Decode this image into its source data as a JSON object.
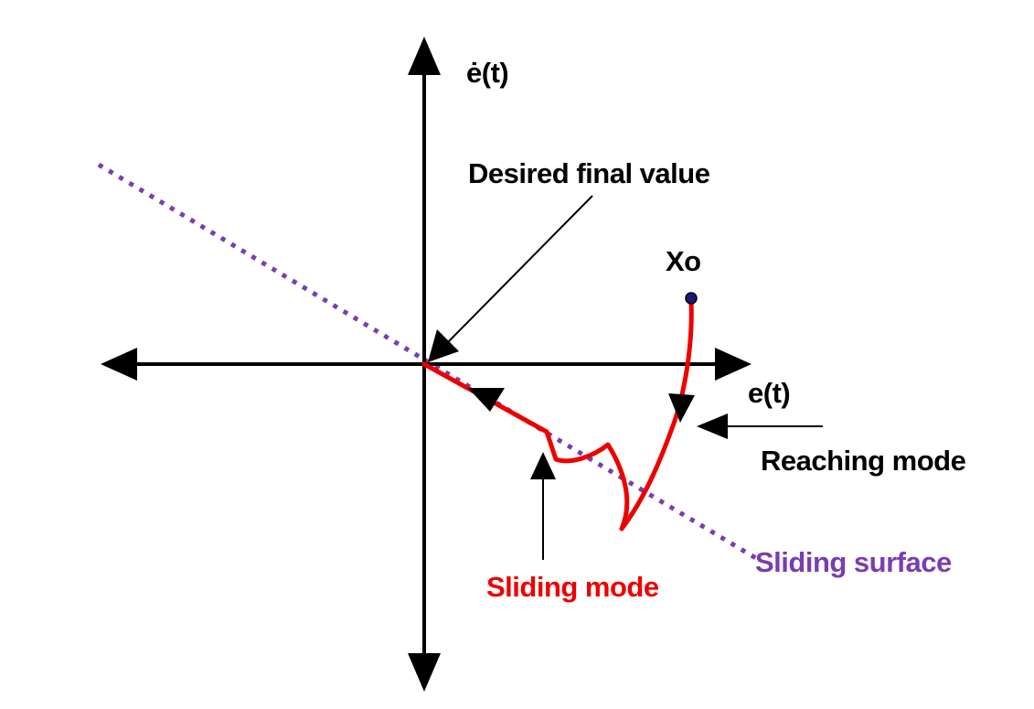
{
  "figure": {
    "ydot_axis_label": "ė(t)",
    "x_axis_label": "e(t)",
    "desired_label": "Desired final value",
    "initial_point_label": "Xo",
    "reaching_label": "Reaching mode",
    "sliding_mode_label": "Sliding mode",
    "sliding_surface_label": "Sliding surface"
  },
  "colors": {
    "axes": "#000000",
    "trajectory": "#ee0000",
    "surface": "#7a3db0",
    "point": "#1a1a7a"
  }
}
